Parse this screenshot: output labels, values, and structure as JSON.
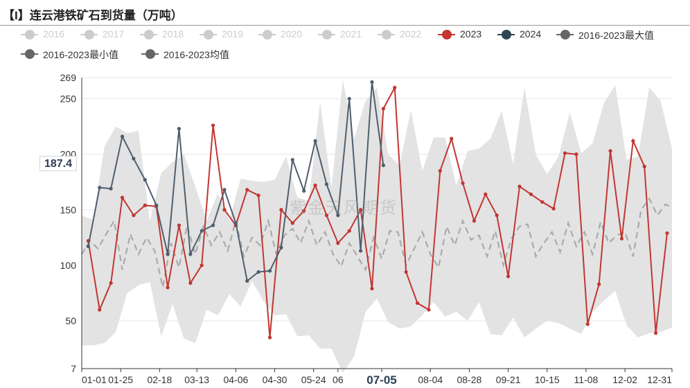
{
  "title": "【I】连云港铁矿石到货量（万吨）",
  "watermark": "紫金天风期货",
  "cursor": {
    "y_value": "187.4",
    "x_label": "07-05"
  },
  "legend": [
    {
      "label": "2016",
      "active": false,
      "style": "dot"
    },
    {
      "label": "2017",
      "active": false,
      "style": "dot"
    },
    {
      "label": "2018",
      "active": false,
      "style": "dot"
    },
    {
      "label": "2019",
      "active": false,
      "style": "dot"
    },
    {
      "label": "2020",
      "active": false,
      "style": "dot"
    },
    {
      "label": "2021",
      "active": false,
      "style": "dot"
    },
    {
      "label": "2022",
      "active": false,
      "style": "dot"
    },
    {
      "label": "2023",
      "active": true,
      "style": "dot",
      "color": "#c23531"
    },
    {
      "label": "2024",
      "active": true,
      "style": "dot",
      "color": "#2f4554"
    },
    {
      "label": "2016-2023最大值",
      "active": true,
      "style": "dot",
      "color": "#666666"
    },
    {
      "label": "2016-2023最小值",
      "active": true,
      "style": "dot",
      "color": "#666666"
    },
    {
      "label": "2016-2023均值",
      "active": true,
      "style": "dot",
      "color": "#666666"
    }
  ],
  "chart_data": {
    "type": "line",
    "x_tick_labels": [
      "01-01",
      "01-25",
      "02-18",
      "03-13",
      "04-06",
      "04-30",
      "05-24",
      "06",
      "07-05",
      "08-04",
      "08-28",
      "09-21",
      "10-15",
      "11-08",
      "12-02",
      "12-31"
    ],
    "x_tick_days": [
      1,
      25,
      49,
      72,
      96,
      120,
      144,
      159,
      186,
      216,
      240,
      264,
      288,
      312,
      336,
      365
    ],
    "y_ticks": [
      7,
      50,
      100,
      150,
      200,
      250,
      269
    ],
    "ylim": [
      7,
      269
    ],
    "xlim": [
      1,
      365
    ],
    "colors": {
      "band": "#e3e3e3",
      "mean": "#aaaaaa",
      "s2023": "#c23531",
      "s2024": "#4f5e6d"
    },
    "band": {
      "days": [
        1,
        8,
        15,
        22,
        29,
        36,
        43,
        50,
        57,
        64,
        71,
        78,
        85,
        92,
        99,
        106,
        113,
        120,
        127,
        134,
        141,
        148,
        155,
        162,
        169,
        176,
        183,
        190,
        197,
        204,
        211,
        218,
        225,
        232,
        239,
        246,
        253,
        260,
        267,
        274,
        281,
        288,
        295,
        302,
        309,
        316,
        323,
        330,
        337,
        344,
        351,
        358,
        365
      ],
      "max": [
        145,
        141,
        207,
        225,
        219,
        221,
        140,
        183,
        193,
        200,
        171,
        140,
        165,
        141,
        178,
        176,
        175,
        177,
        198,
        161,
        158,
        247,
        170,
        267,
        214,
        248,
        260,
        200,
        190,
        240,
        185,
        215,
        215,
        172,
        203,
        205,
        214,
        239,
        191,
        260,
        200,
        182,
        198,
        238,
        201,
        210,
        246,
        262,
        195,
        198,
        260,
        248,
        205
      ],
      "min": [
        28,
        28,
        30,
        40,
        75,
        82,
        85,
        36,
        65,
        34,
        30,
        60,
        55,
        74,
        63,
        86,
        68,
        55,
        56,
        36,
        37,
        25,
        25,
        3,
        18,
        58,
        70,
        49,
        43,
        45,
        55,
        67,
        54,
        58,
        50,
        67,
        38,
        37,
        53,
        35,
        43,
        50,
        48,
        43,
        38,
        58,
        68,
        77,
        46,
        35,
        39,
        40,
        44
      ]
    },
    "mean": {
      "days": [
        1,
        6,
        11,
        16,
        21,
        26,
        31,
        36,
        41,
        46,
        51,
        56,
        61,
        66,
        71,
        76,
        81,
        86,
        91,
        96,
        101,
        106,
        111,
        116,
        121,
        126,
        131,
        136,
        141,
        146,
        151,
        156,
        161,
        166,
        171,
        176,
        181,
        186,
        191,
        196,
        201,
        206,
        211,
        216,
        221,
        226,
        231,
        236,
        241,
        246,
        251,
        256,
        261,
        266,
        271,
        276,
        281,
        286,
        291,
        296,
        301,
        306,
        311,
        316,
        321,
        326,
        331,
        336,
        341,
        346,
        351,
        356,
        361,
        365
      ],
      "values": [
        110,
        122,
        115,
        128,
        140,
        96,
        128,
        110,
        125,
        113,
        80,
        120,
        98,
        136,
        110,
        135,
        118,
        130,
        113,
        140,
        108,
        125,
        118,
        140,
        110,
        127,
        133,
        120,
        140,
        118,
        130,
        110,
        99,
        120,
        108,
        96,
        125,
        106,
        131,
        130,
        100,
        115,
        130,
        110,
        98,
        135,
        118,
        140,
        123,
        127,
        108,
        131,
        100,
        124,
        135,
        137,
        108,
        120,
        130,
        112,
        138,
        117,
        130,
        110,
        139,
        120,
        127,
        130,
        108,
        150,
        160,
        145,
        155,
        152
      ]
    },
    "series": [
      {
        "name": "2023",
        "points": [
          [
            5,
            122
          ],
          [
            12,
            60
          ],
          [
            19,
            84
          ],
          [
            26,
            161
          ],
          [
            33,
            145
          ],
          [
            40,
            154
          ],
          [
            47,
            153
          ],
          [
            54,
            80
          ],
          [
            61,
            136
          ],
          [
            68,
            84
          ],
          [
            75,
            100
          ],
          [
            82,
            226
          ],
          [
            89,
            150
          ],
          [
            96,
            136
          ],
          [
            103,
            168
          ],
          [
            110,
            163
          ],
          [
            117,
            35
          ],
          [
            124,
            150
          ],
          [
            131,
            138
          ],
          [
            138,
            149
          ],
          [
            145,
            172
          ],
          [
            152,
            145
          ],
          [
            159,
            120
          ],
          [
            166,
            131
          ],
          [
            173,
            150
          ],
          [
            180,
            79
          ],
          [
            187,
            241
          ],
          [
            194,
            260
          ],
          [
            201,
            94
          ],
          [
            208,
            66
          ],
          [
            215,
            60
          ],
          [
            222,
            185
          ],
          [
            229,
            214
          ],
          [
            236,
            174
          ],
          [
            243,
            140
          ],
          [
            250,
            164
          ],
          [
            257,
            145
          ],
          [
            264,
            90
          ],
          [
            271,
            171
          ],
          [
            278,
            164
          ],
          [
            285,
            157
          ],
          [
            292,
            151
          ],
          [
            299,
            201
          ],
          [
            306,
            200
          ],
          [
            313,
            47
          ],
          [
            320,
            83
          ],
          [
            327,
            203
          ],
          [
            334,
            124
          ],
          [
            341,
            212
          ],
          [
            348,
            189
          ],
          [
            355,
            39
          ],
          [
            362,
            129
          ]
        ]
      },
      {
        "name": "2024",
        "points": [
          [
            5,
            117
          ],
          [
            12,
            170
          ],
          [
            19,
            169
          ],
          [
            26,
            216
          ],
          [
            33,
            196
          ],
          [
            40,
            177
          ],
          [
            47,
            154
          ],
          [
            54,
            110
          ],
          [
            61,
            223
          ],
          [
            68,
            110
          ],
          [
            75,
            131
          ],
          [
            82,
            136
          ],
          [
            89,
            168
          ],
          [
            96,
            138
          ],
          [
            103,
            86
          ],
          [
            110,
            94
          ],
          [
            117,
            95
          ],
          [
            124,
            116
          ],
          [
            131,
            195
          ],
          [
            138,
            167
          ],
          [
            145,
            212
          ],
          [
            152,
            173
          ],
          [
            159,
            145
          ],
          [
            166,
            250
          ],
          [
            173,
            113
          ],
          [
            180,
            265
          ],
          [
            187,
            190
          ]
        ]
      }
    ]
  }
}
